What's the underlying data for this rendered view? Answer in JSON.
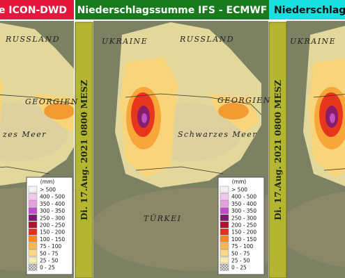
{
  "panels": [
    {
      "header": "e ICON-DWD",
      "header_color": "#e4183c",
      "header_text_color": "#ffffff",
      "map_labels": [
        "RUSSLAND",
        "GEORGIEN",
        "zes Meer"
      ]
    },
    {
      "header": "Niederschlagssumme IFS - ECMWF",
      "header_color": "#177a1c",
      "header_text_color": "#ffffff",
      "map_labels": [
        "UKRAINE",
        "RUSSLAND",
        "GEORGIEN",
        "Schwarzes Meer",
        "TÜRKEI"
      ]
    },
    {
      "header": "Niederschlag",
      "header_color": "#18e0e0",
      "header_text_color": "#111111",
      "map_labels": [
        "UKRAINE"
      ]
    }
  ],
  "date_strips": [
    "Di. 17.Aug. 2021 0800 MESZ",
    "Di. 17.Aug. 2021 0800 MESZ"
  ],
  "legends": [
    {
      "unit": "(mm)",
      "items": [
        "> 500",
        "400 - 500",
        "350 - 400",
        "300 - 350",
        "250 - 300",
        "200 - 250",
        "150 - 200",
        "100 - 150",
        "75 - 100",
        "50 - 75",
        "25 - 50",
        "0 - 25"
      ]
    },
    {
      "unit": "(mm)",
      "items": [
        "> 500",
        "400 - 500",
        "350 - 400",
        "300 - 350",
        "250 - 300",
        "200 - 250",
        "150 - 200",
        "100 - 150",
        "75 - 100",
        "50 - 75",
        "25 - 50",
        "0 - 25"
      ]
    }
  ]
}
